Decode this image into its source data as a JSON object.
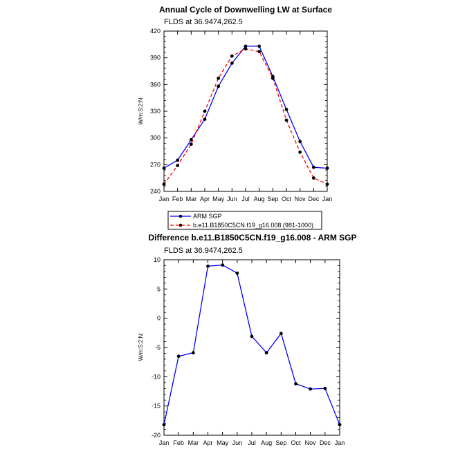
{
  "chart_data": [
    {
      "type": "line",
      "title": "Annual Cycle of Downwelling LW at Surface",
      "subtitle": "FLDS at 36.9474,262.5",
      "ylabel": "W/m:S:2:N:",
      "xlabel": "",
      "categories": [
        "Jan",
        "Feb",
        "Mar",
        "Apr",
        "May",
        "Jun",
        "Jul",
        "Aug",
        "Sep",
        "Oct",
        "Nov",
        "Dec",
        "Jan"
      ],
      "ylim": [
        240,
        420
      ],
      "yticks": [
        240,
        270,
        300,
        330,
        360,
        390,
        420
      ],
      "ytick_labels": [
        "240",
        "270",
        "300",
        "330",
        "360",
        "390",
        "420"
      ],
      "grid": false,
      "legend": "bottom",
      "series": [
        {
          "name": "ARM SGP",
          "color": "#0000ff",
          "dash": "solid",
          "values": [
            266,
            275,
            298,
            321,
            358,
            384,
            403,
            403,
            369,
            332,
            296,
            267,
            266
          ]
        },
        {
          "name": "b.e11.B1850C5CN.f19_g16.008 (981-1000)",
          "color": "#ff0000",
          "dash": "dashed",
          "values": [
            248,
            269,
            293,
            330,
            367,
            392,
            400,
            397,
            367,
            320,
            284,
            255,
            248
          ]
        }
      ]
    },
    {
      "type": "line",
      "title": "Difference b.e11.B1850C5CN.f19_g16.008 - ARM SGP",
      "subtitle": "FLDS at 36.9474,262.5",
      "ylabel": "W/m:S:2:N:",
      "xlabel": "",
      "categories": [
        "Jan",
        "Feb",
        "Mar",
        "Apr",
        "May",
        "Jun",
        "Jul",
        "Aug",
        "Sep",
        "Oct",
        "Nov",
        "Dec",
        "Jan"
      ],
      "ylim": [
        -20,
        10
      ],
      "yticks": [
        -20,
        -15,
        -10,
        -5,
        0,
        5,
        10
      ],
      "ytick_labels": [
        "-20",
        "-15",
        "-10",
        "-5",
        "0",
        "5",
        "10"
      ],
      "grid": false,
      "series": [
        {
          "color": "#0000ff",
          "dash": "solid",
          "values": [
            -18.2,
            -6.5,
            -5.9,
            8.9,
            9.1,
            7.7,
            -3.1,
            -5.9,
            -2.6,
            -11.2,
            -12.1,
            -12.0,
            -18.2
          ]
        }
      ]
    }
  ]
}
